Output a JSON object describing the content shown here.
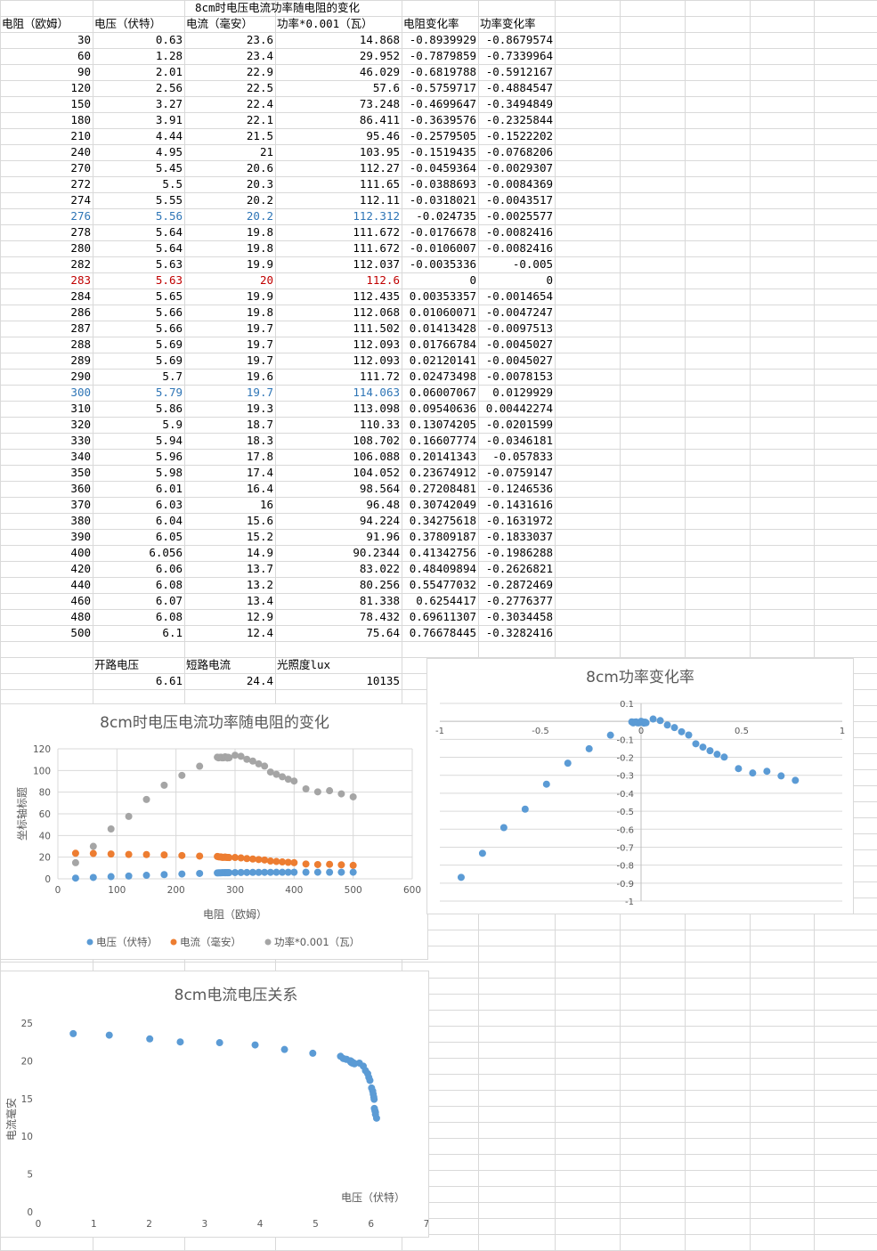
{
  "sheet": {
    "title": "8cm时电压电流功率随电阻的变化",
    "headers": [
      "电阻（欧姆）",
      "电压（伏特）",
      "电流（毫安）",
      "功率*0.001（瓦）",
      "电阻变化率",
      "功率变化率"
    ],
    "rows": [
      [
        "30",
        "0.63",
        "23.6",
        "14.868",
        "-0.8939929",
        "-0.8679574"
      ],
      [
        "60",
        "1.28",
        "23.4",
        "29.952",
        "-0.7879859",
        "-0.7339964"
      ],
      [
        "90",
        "2.01",
        "22.9",
        "46.029",
        "-0.6819788",
        "-0.5912167"
      ],
      [
        "120",
        "2.56",
        "22.5",
        "57.6",
        "-0.5759717",
        "-0.4884547"
      ],
      [
        "150",
        "3.27",
        "22.4",
        "73.248",
        "-0.4699647",
        "-0.3494849"
      ],
      [
        "180",
        "3.91",
        "22.1",
        "86.411",
        "-0.3639576",
        "-0.2325844"
      ],
      [
        "210",
        "4.44",
        "21.5",
        "95.46",
        "-0.2579505",
        "-0.1522202"
      ],
      [
        "240",
        "4.95",
        "21",
        "103.95",
        "-0.1519435",
        "-0.0768206"
      ],
      [
        "270",
        "5.45",
        "20.6",
        "112.27",
        "-0.0459364",
        "-0.0029307"
      ],
      [
        "272",
        "5.5",
        "20.3",
        "111.65",
        "-0.0388693",
        "-0.0084369"
      ],
      [
        "274",
        "5.55",
        "20.2",
        "112.11",
        "-0.0318021",
        "-0.0043517"
      ],
      [
        "276",
        "5.56",
        "20.2",
        "112.312",
        "-0.024735",
        "-0.0025577"
      ],
      [
        "278",
        "5.64",
        "19.8",
        "111.672",
        "-0.0176678",
        "-0.0082416"
      ],
      [
        "280",
        "5.64",
        "19.8",
        "111.672",
        "-0.0106007",
        "-0.0082416"
      ],
      [
        "282",
        "5.63",
        "19.9",
        "112.037",
        "-0.0035336",
        "-0.005"
      ],
      [
        "283",
        "5.63",
        "20",
        "112.6",
        "0",
        "0"
      ],
      [
        "284",
        "5.65",
        "19.9",
        "112.435",
        "0.00353357",
        "-0.0014654"
      ],
      [
        "286",
        "5.66",
        "19.8",
        "112.068",
        "0.01060071",
        "-0.0047247"
      ],
      [
        "287",
        "5.66",
        "19.7",
        "111.502",
        "0.01413428",
        "-0.0097513"
      ],
      [
        "288",
        "5.69",
        "19.7",
        "112.093",
        "0.01766784",
        "-0.0045027"
      ],
      [
        "289",
        "5.69",
        "19.7",
        "112.093",
        "0.02120141",
        "-0.0045027"
      ],
      [
        "290",
        "5.7",
        "19.6",
        "111.72",
        "0.02473498",
        "-0.0078153"
      ],
      [
        "300",
        "5.79",
        "19.7",
        "114.063",
        "0.06007067",
        "0.0129929"
      ],
      [
        "310",
        "5.86",
        "19.3",
        "113.098",
        "0.09540636",
        "0.00442274"
      ],
      [
        "320",
        "5.9",
        "18.7",
        "110.33",
        "0.13074205",
        "-0.0201599"
      ],
      [
        "330",
        "5.94",
        "18.3",
        "108.702",
        "0.16607774",
        "-0.0346181"
      ],
      [
        "340",
        "5.96",
        "17.8",
        "106.088",
        "0.20141343",
        "-0.057833"
      ],
      [
        "350",
        "5.98",
        "17.4",
        "104.052",
        "0.23674912",
        "-0.0759147"
      ],
      [
        "360",
        "6.01",
        "16.4",
        "98.564",
        "0.27208481",
        "-0.1246536"
      ],
      [
        "370",
        "6.03",
        "16",
        "96.48",
        "0.30742049",
        "-0.1431616"
      ],
      [
        "380",
        "6.04",
        "15.6",
        "94.224",
        "0.34275618",
        "-0.1631972"
      ],
      [
        "390",
        "6.05",
        "15.2",
        "91.96",
        "0.37809187",
        "-0.1833037"
      ],
      [
        "400",
        "6.056",
        "14.9",
        "90.2344",
        "0.41342756",
        "-0.1986288"
      ],
      [
        "420",
        "6.06",
        "13.7",
        "83.022",
        "0.48409894",
        "-0.2626821"
      ],
      [
        "440",
        "6.08",
        "13.2",
        "80.256",
        "0.55477032",
        "-0.2872469"
      ],
      [
        "460",
        "6.07",
        "13.4",
        "81.338",
        "0.6254417",
        "-0.2776377"
      ],
      [
        "480",
        "6.08",
        "12.9",
        "78.432",
        "0.69611307",
        "-0.3034458"
      ],
      [
        "500",
        "6.1",
        "12.4",
        "75.64",
        "0.76678445",
        "-0.3282416"
      ]
    ],
    "row_colors": {
      "11": "#2e75b6",
      "15": "#c00000",
      "22": "#2e75b6"
    },
    "summary_labels": [
      "开路电压",
      "短路电流",
      "光照度lux"
    ],
    "summary_values": [
      "6.61",
      "24.4",
      "10135"
    ]
  },
  "chart_data": [
    {
      "type": "scatter",
      "title": "8cm时电压电流功率随电阻的变化",
      "xlabel": "电阻（欧姆）",
      "ylabel": "坐标轴标题",
      "xlim": [
        0,
        600
      ],
      "ylim": [
        0,
        120
      ],
      "xticks": [
        0,
        100,
        200,
        300,
        400,
        500,
        600
      ],
      "yticks": [
        0,
        20,
        40,
        60,
        80,
        100,
        120
      ],
      "legend": "bottom",
      "x": [
        30,
        60,
        90,
        120,
        150,
        180,
        210,
        240,
        270,
        272,
        274,
        276,
        278,
        280,
        282,
        283,
        284,
        286,
        287,
        288,
        289,
        290,
        300,
        310,
        320,
        330,
        340,
        350,
        360,
        370,
        380,
        390,
        400,
        420,
        440,
        460,
        480,
        500
      ],
      "series": [
        {
          "name": "电压（伏特）",
          "color": "#5b9bd5",
          "values": [
            0.63,
            1.28,
            2.01,
            2.56,
            3.27,
            3.91,
            4.44,
            4.95,
            5.45,
            5.5,
            5.55,
            5.56,
            5.64,
            5.64,
            5.63,
            5.63,
            5.65,
            5.66,
            5.66,
            5.69,
            5.69,
            5.7,
            5.79,
            5.86,
            5.9,
            5.94,
            5.96,
            5.98,
            6.01,
            6.03,
            6.04,
            6.05,
            6.056,
            6.06,
            6.08,
            6.07,
            6.08,
            6.1
          ]
        },
        {
          "name": "电流（毫安）",
          "color": "#ed7d31",
          "values": [
            23.6,
            23.4,
            22.9,
            22.5,
            22.4,
            22.1,
            21.5,
            21,
            20.6,
            20.3,
            20.2,
            20.2,
            19.8,
            19.8,
            19.9,
            20,
            19.9,
            19.8,
            19.7,
            19.7,
            19.7,
            19.6,
            19.7,
            19.3,
            18.7,
            18.3,
            17.8,
            17.4,
            16.4,
            16,
            15.6,
            15.2,
            14.9,
            13.7,
            13.2,
            13.4,
            12.9,
            12.4
          ]
        },
        {
          "name": "功率*0.001（瓦）",
          "color": "#a5a5a5",
          "values": [
            14.868,
            29.952,
            46.029,
            57.6,
            73.248,
            86.411,
            95.46,
            103.95,
            112.27,
            111.65,
            112.11,
            112.312,
            111.672,
            111.672,
            112.037,
            112.6,
            112.435,
            112.068,
            111.502,
            112.093,
            112.093,
            111.72,
            114.063,
            113.098,
            110.33,
            108.702,
            106.088,
            104.052,
            98.564,
            96.48,
            94.224,
            91.96,
            90.2344,
            83.022,
            80.256,
            81.338,
            78.432,
            75.64
          ]
        }
      ]
    },
    {
      "type": "scatter",
      "title": "8cm功率变化率",
      "xlim": [
        -1,
        1
      ],
      "ylim": [
        -1,
        0.1
      ],
      "xticks": [
        -1,
        -0.5,
        0,
        0.5,
        1
      ],
      "yticks": [
        0.1,
        0,
        -0.1,
        -0.2,
        -0.3,
        -0.4,
        -0.5,
        -0.6,
        -0.7,
        -0.8,
        -0.9,
        -1
      ],
      "series": [
        {
          "color": "#5b9bd5",
          "x": [
            -0.8939929,
            -0.7879859,
            -0.6819788,
            -0.5759717,
            -0.4699647,
            -0.3639576,
            -0.2579505,
            -0.1519435,
            -0.0459364,
            -0.0388693,
            -0.0318021,
            -0.024735,
            -0.0176678,
            -0.0106007,
            -0.0035336,
            0,
            0.00353357,
            0.01060071,
            0.01413428,
            0.01766784,
            0.02120141,
            0.02473498,
            0.06007067,
            0.09540636,
            0.13074205,
            0.16607774,
            0.20141343,
            0.23674912,
            0.27208481,
            0.30742049,
            0.34275618,
            0.37809187,
            0.41342756,
            0.48409894,
            0.55477032,
            0.6254417,
            0.69611307,
            0.76678445
          ],
          "y": [
            -0.8679574,
            -0.7339964,
            -0.5912167,
            -0.4884547,
            -0.3494849,
            -0.2325844,
            -0.1522202,
            -0.0768206,
            -0.0029307,
            -0.0084369,
            -0.0043517,
            -0.0025577,
            -0.0082416,
            -0.0082416,
            -0.005,
            0,
            -0.0014654,
            -0.0047247,
            -0.0097513,
            -0.0045027,
            -0.0045027,
            -0.0078153,
            0.0129929,
            0.00442274,
            -0.0201599,
            -0.0346181,
            -0.057833,
            -0.0759147,
            -0.1246536,
            -0.1431616,
            -0.1631972,
            -0.1833037,
            -0.1986288,
            -0.2626821,
            -0.2872469,
            -0.2776377,
            -0.3034458,
            -0.3282416
          ]
        }
      ]
    },
    {
      "type": "scatter",
      "title": "8cm电流电压关系",
      "xlabel": "电压（伏特）",
      "ylabel": "电流毫安",
      "xlim": [
        0,
        7
      ],
      "ylim": [
        0,
        25
      ],
      "xticks": [
        0,
        1,
        2,
        3,
        4,
        5,
        6,
        7
      ],
      "yticks": [
        0,
        5,
        10,
        15,
        20,
        25
      ],
      "series": [
        {
          "color": "#5b9bd5",
          "x": [
            0.63,
            1.28,
            2.01,
            2.56,
            3.27,
            3.91,
            4.44,
            4.95,
            5.45,
            5.5,
            5.55,
            5.56,
            5.64,
            5.64,
            5.63,
            5.63,
            5.65,
            5.66,
            5.66,
            5.69,
            5.69,
            5.7,
            5.79,
            5.86,
            5.9,
            5.94,
            5.96,
            5.98,
            6.01,
            6.03,
            6.04,
            6.05,
            6.056,
            6.06,
            6.08,
            6.07,
            6.08,
            6.1
          ],
          "y": [
            23.6,
            23.4,
            22.9,
            22.5,
            22.4,
            22.1,
            21.5,
            21,
            20.6,
            20.3,
            20.2,
            20.2,
            19.8,
            19.8,
            19.9,
            20,
            19.9,
            19.8,
            19.7,
            19.7,
            19.7,
            19.6,
            19.7,
            19.3,
            18.7,
            18.3,
            17.8,
            17.4,
            16.4,
            16,
            15.6,
            15.2,
            14.9,
            13.7,
            13.2,
            13.4,
            12.9,
            12.4
          ]
        }
      ]
    }
  ]
}
